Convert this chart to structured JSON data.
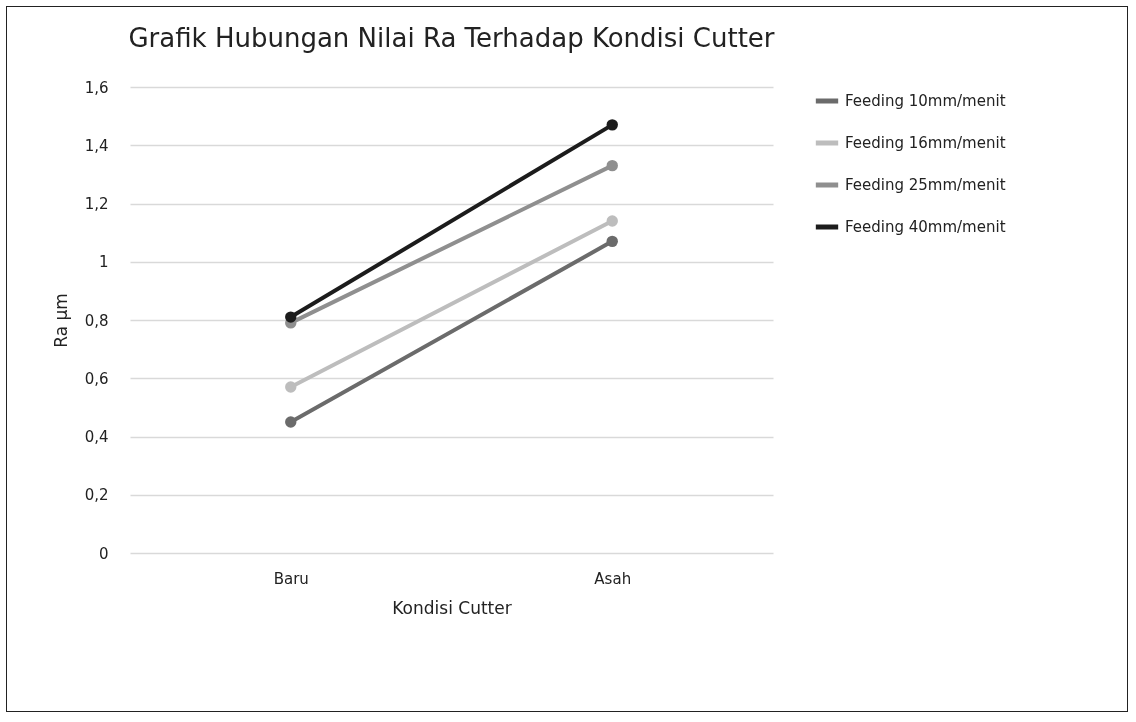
{
  "chart_data": {
    "type": "line",
    "title": "Grafik Hubungan Nilai Ra Terhadap Kondisi Cutter",
    "xlabel": "Kondisi Cutter",
    "ylabel": "Ra µm",
    "categories": [
      "Baru",
      "Asah"
    ],
    "series": [
      {
        "name": "Feeding 10mm/menit",
        "color": "#6b6b6b",
        "values": [
          0.45,
          1.07
        ]
      },
      {
        "name": "Feeding 16mm/menit",
        "color": "#bdbdbd",
        "values": [
          0.57,
          1.14
        ]
      },
      {
        "name": "Feeding 25mm/menit",
        "color": "#8f8f8f",
        "values": [
          0.79,
          1.33
        ]
      },
      {
        "name": "Feeding 40mm/menit",
        "color": "#1c1c1c",
        "values": [
          0.81,
          1.47
        ]
      }
    ],
    "ylim": [
      0,
      1.6
    ],
    "yticks": [
      0,
      {
        "value": 0.2,
        "label": "0,2"
      },
      {
        "value": 0.4,
        "label": "0,4"
      },
      {
        "value": 0.6,
        "label": "0,6"
      },
      {
        "value": 0.8,
        "label": "0,8"
      },
      1,
      {
        "value": 1.2,
        "label": "1,2"
      },
      {
        "value": 1.4,
        "label": "1,4"
      },
      {
        "value": 1.6,
        "label": "1,6"
      }
    ],
    "grid": "y",
    "legend": "right",
    "marker": "circle",
    "line_style": "solid"
  }
}
